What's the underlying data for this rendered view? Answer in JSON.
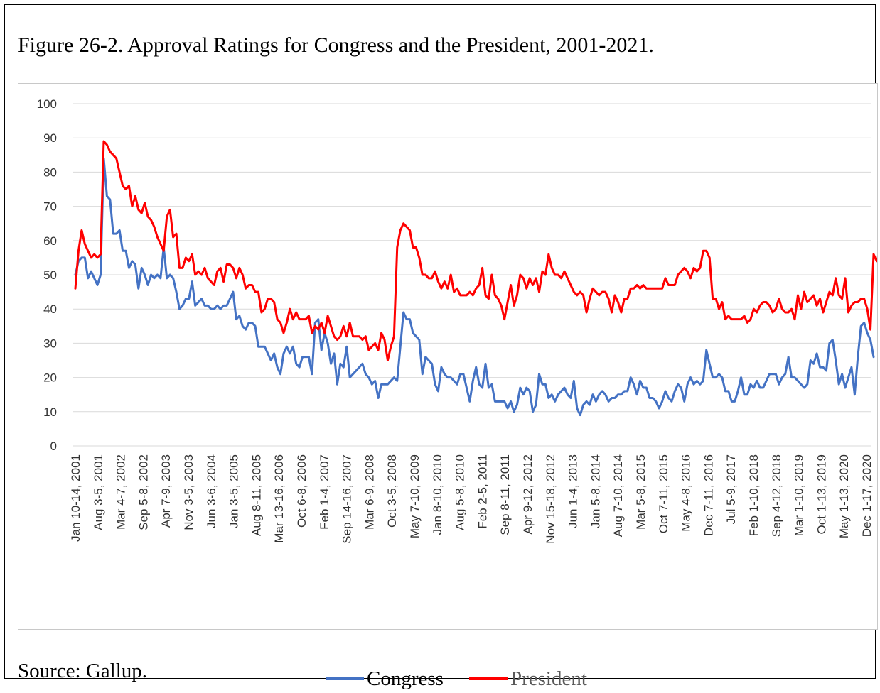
{
  "figure_title": "Figure 26-2. Approval Ratings for Congress and the President, 2001-2021.",
  "source_note": "Source: Gallup.",
  "legend": [
    {
      "label": "Congress",
      "color": "#4472C4"
    },
    {
      "label": "President",
      "color": "#FF0000"
    }
  ],
  "chart_data": {
    "type": "line",
    "title": "",
    "xlabel": "",
    "ylabel": "",
    "ylim": [
      0,
      100
    ],
    "yticks": [
      0,
      10,
      20,
      30,
      40,
      50,
      60,
      70,
      80,
      90,
      100
    ],
    "grid": "horizontal",
    "legend_position": "bottom",
    "x_tick_labels": [
      "Jan 10-14, 2001",
      "Aug 3-5, 2001",
      "Mar 4-7, 2002",
      "Sep 5-8, 2002",
      "Apr 7-9, 2003",
      "Nov 3-5, 2003",
      "Jun 3-6, 2004",
      "Jan 3-5, 2005",
      "Aug 8-11, 2005",
      "Mar 13-16, 2006",
      "Oct 6-8, 2006",
      "Feb 1-4, 2007",
      "Sep 14-16, 2007",
      "Mar 6-9, 2008",
      "Oct 3-5, 2008",
      "May 7-10, 2009",
      "Jan 8-10, 2010",
      "Aug 5-8, 2010",
      "Feb 2-5, 2011",
      "Sep 8-11, 2011",
      "Apr 9-12, 2012",
      "Nov 15-18, 2012",
      "Jun 1-4, 2013",
      "Jan 5-8, 2014",
      "Aug 7-10, 2014",
      "Mar 5-8, 2015",
      "Oct 7-11, 2015",
      "May 4-8, 2016",
      "Dec 7-11, 2016",
      "Jul 5-9, 2017",
      "Feb 1-10, 2018",
      "Sep 4-12, 2018",
      "Mar 1-10, 2019",
      "Oct 1-13, 2019",
      "May 1-13, 2020",
      "Dec 1-17, 2020"
    ],
    "series": [
      {
        "name": "Congress",
        "color": "#4472C4",
        "values": [
          50,
          54,
          55,
          55,
          49,
          51,
          49,
          47,
          50,
          84,
          73,
          72,
          62,
          62,
          63,
          57,
          57,
          52,
          54,
          53,
          46,
          52,
          50,
          47,
          50,
          49,
          50,
          49,
          58,
          49,
          50,
          49,
          45,
          40,
          41,
          43,
          43,
          48,
          41,
          42,
          43,
          41,
          41,
          40,
          40,
          41,
          40,
          41,
          41,
          43,
          45,
          37,
          38,
          35,
          34,
          36,
          36,
          35,
          29,
          29,
          29,
          27,
          25,
          27,
          23,
          21,
          27,
          29,
          27,
          29,
          24,
          23,
          26,
          26,
          26,
          21,
          36,
          37,
          28,
          33,
          30,
          24,
          27,
          18,
          24,
          23,
          29,
          20,
          21,
          22,
          23,
          24,
          21,
          20,
          18,
          19,
          14,
          18,
          18,
          18,
          19,
          20,
          19,
          29,
          39,
          37,
          37,
          33,
          32,
          31,
          21,
          26,
          25,
          24,
          18,
          16,
          23,
          21,
          20,
          20,
          19,
          18,
          21,
          21,
          17,
          13,
          19,
          23,
          18,
          17,
          24,
          17,
          18,
          13,
          13,
          13,
          13,
          11,
          13,
          10,
          12,
          17,
          15,
          17,
          16,
          10,
          12,
          21,
          18,
          18,
          14,
          15,
          13,
          15,
          16,
          17,
          15,
          14,
          19,
          11,
          9,
          12,
          13,
          12,
          15,
          13,
          15,
          16,
          15,
          13,
          14,
          14,
          15,
          15,
          16,
          16,
          20,
          18,
          15,
          19,
          17,
          17,
          14,
          14,
          13,
          11,
          13,
          16,
          14,
          13,
          16,
          18,
          17,
          13,
          18,
          20,
          18,
          19,
          18,
          19,
          28,
          24,
          20,
          20,
          21,
          20,
          16,
          16,
          13,
          13,
          16,
          20,
          15,
          15,
          18,
          17,
          19,
          17,
          17,
          19,
          21,
          21,
          21,
          18,
          20,
          21,
          26,
          20,
          20,
          19,
          18,
          17,
          18,
          25,
          24,
          27,
          23,
          23,
          22,
          30,
          31,
          25,
          18,
          21,
          17,
          20,
          23,
          15,
          26,
          35,
          36,
          33,
          31,
          26
        ]
      },
      {
        "name": "President",
        "color": "#FF0000",
        "values": [
          46,
          57,
          63,
          59,
          57,
          55,
          56,
          55,
          56,
          89,
          88,
          86,
          85,
          84,
          80,
          76,
          75,
          76,
          70,
          73,
          69,
          68,
          71,
          67,
          66,
          64,
          61,
          59,
          57,
          67,
          69,
          61,
          62,
          52,
          52,
          55,
          54,
          56,
          50,
          51,
          50,
          52,
          49,
          48,
          47,
          51,
          52,
          48,
          53,
          53,
          52,
          49,
          52,
          50,
          46,
          47,
          47,
          45,
          45,
          39,
          40,
          43,
          43,
          42,
          37,
          36,
          33,
          36,
          40,
          37,
          39,
          37,
          37,
          37,
          38,
          33,
          35,
          34,
          36,
          33,
          38,
          35,
          32,
          31,
          32,
          35,
          32,
          36,
          32,
          32,
          32,
          31,
          32,
          28,
          29,
          30,
          28,
          33,
          31,
          25,
          29,
          32,
          58,
          63,
          65,
          64,
          63,
          58,
          58,
          55,
          50,
          50,
          49,
          49,
          51,
          48,
          46,
          48,
          46,
          50,
          45,
          46,
          44,
          44,
          44,
          45,
          44,
          46,
          47,
          52,
          44,
          43,
          50,
          44,
          43,
          41,
          37,
          42,
          47,
          41,
          44,
          50,
          49,
          46,
          49,
          47,
          49,
          45,
          51,
          50,
          56,
          52,
          50,
          50,
          49,
          51,
          49,
          47,
          45,
          44,
          45,
          44,
          39,
          43,
          46,
          45,
          44,
          45,
          45,
          43,
          39,
          44,
          42,
          39,
          43,
          43,
          46,
          46,
          47,
          46,
          47,
          46,
          46,
          46,
          46,
          46,
          46,
          49,
          47,
          47,
          47,
          50,
          51,
          52,
          51,
          49,
          52,
          51,
          52,
          57,
          57,
          55,
          43,
          43,
          40,
          42,
          37,
          38,
          37,
          37,
          37,
          37,
          38,
          36,
          37,
          40,
          39,
          41,
          42,
          42,
          41,
          39,
          40,
          43,
          40,
          39,
          39,
          40,
          37,
          44,
          40,
          45,
          42,
          43,
          44,
          41,
          43,
          39,
          42,
          45,
          44,
          49,
          44,
          43,
          49,
          39,
          41,
          42,
          42,
          43,
          43,
          40,
          34,
          56,
          54,
          57,
          54,
          56
        ]
      }
    ]
  }
}
